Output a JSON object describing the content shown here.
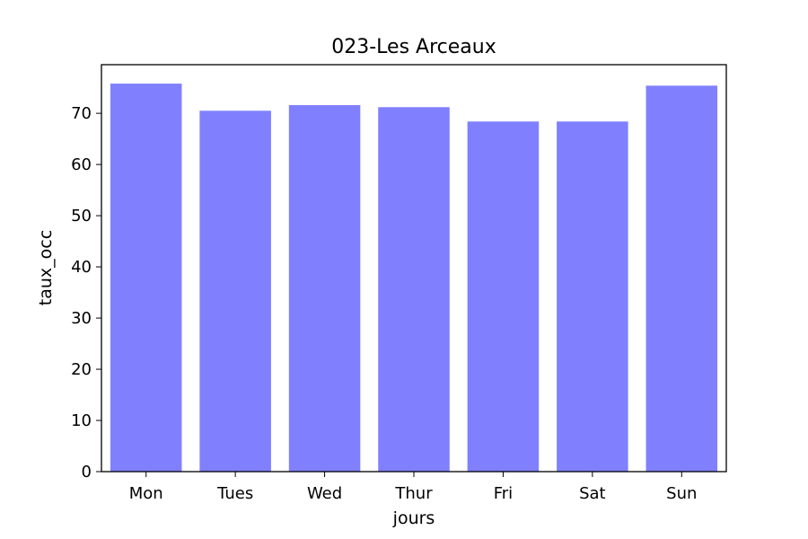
{
  "chart_data": {
    "type": "bar",
    "title": "023-Les Arceaux",
    "xlabel": "jours",
    "ylabel": "taux_occ",
    "categories": [
      "Mon",
      "Tues",
      "Wed",
      "Thur",
      "Fri",
      "Sat",
      "Sun"
    ],
    "values": [
      75.8,
      70.5,
      71.6,
      71.2,
      68.4,
      68.4,
      75.4
    ],
    "ylim": [
      0,
      79.5
    ],
    "yticks": [
      0,
      10,
      20,
      30,
      40,
      50,
      60,
      70
    ],
    "bar_color": "#8080ff",
    "grid": false,
    "legend": "none"
  }
}
